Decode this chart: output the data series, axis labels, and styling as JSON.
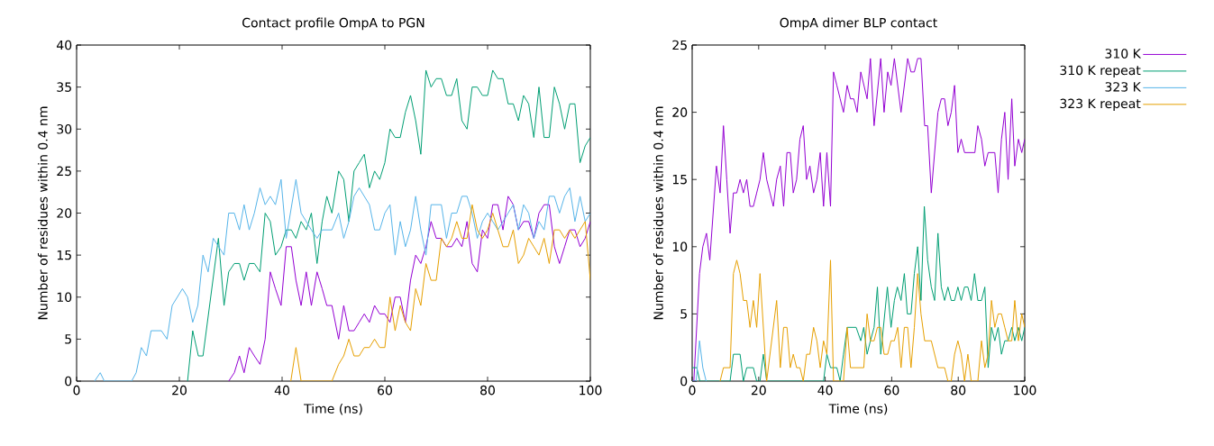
{
  "chart_data": [
    {
      "type": "line",
      "title": "Contact profile OmpA to PGN",
      "xlabel": "Time (ns)",
      "ylabel": "Number of residues within 0.4 nm",
      "xlim": [
        0,
        100
      ],
      "ylim": [
        0,
        40
      ],
      "xticks": [
        0,
        20,
        40,
        60,
        80,
        100
      ],
      "yticks": [
        0,
        5,
        10,
        15,
        20,
        25,
        30,
        35,
        40
      ],
      "series": [
        {
          "color": "#9400d3",
          "x": [
            29.6,
            30.7,
            31.7,
            32.6,
            33.6,
            34.6,
            35.7,
            36.7,
            37.7,
            38.7,
            39.8,
            40.8,
            41.8,
            42.7,
            43.7,
            44.7,
            45.7,
            46.8,
            47.8,
            48.7,
            49.7,
            51,
            52,
            53,
            54,
            55,
            56,
            57,
            58,
            59,
            60,
            61,
            62,
            63,
            64,
            65,
            66,
            67,
            68,
            69,
            70,
            71,
            72,
            73,
            74,
            75,
            76,
            77,
            78,
            79,
            80,
            81,
            82,
            83,
            84,
            85,
            86,
            87,
            88,
            89,
            90,
            91,
            92,
            93,
            94,
            95,
            96,
            97,
            98,
            99,
            100
          ],
          "values": [
            0,
            1,
            3,
            1,
            4,
            3,
            2,
            5,
            13,
            11,
            9,
            16,
            16,
            12,
            9,
            13,
            9,
            13,
            11,
            9,
            9,
            5,
            9,
            6,
            6,
            7,
            8,
            7,
            9,
            8,
            8,
            7,
            10,
            10,
            7,
            12,
            15,
            14,
            16,
            19,
            17,
            17,
            16,
            16,
            17,
            16,
            19,
            14,
            13,
            18,
            17,
            21,
            21,
            18,
            22,
            21,
            18,
            19,
            19,
            17,
            20,
            21,
            21,
            16,
            14,
            16,
            18,
            18,
            16,
            17,
            19
          ]
        },
        {
          "color": "#009e73",
          "x": [
            21.6,
            22.6,
            23.7,
            24.6,
            27.6,
            28.7,
            29.6,
            30.7,
            31.7,
            32.6,
            33.6,
            34.6,
            35.7,
            36.7,
            37.7,
            38.7,
            39.8,
            40.8,
            41.8,
            42.7,
            43.7,
            44.7,
            45.7,
            46.8,
            47.8,
            48.7,
            49.7,
            51,
            52,
            53,
            54,
            55,
            56,
            57,
            58,
            59,
            60,
            61,
            62,
            63,
            64,
            65,
            66,
            67,
            68,
            69,
            70,
            71,
            72,
            73,
            74,
            75,
            76,
            77,
            78,
            79,
            80,
            81,
            82,
            83,
            84,
            85,
            86,
            87,
            88,
            89,
            90,
            91,
            92,
            93,
            94,
            95,
            96,
            97,
            98,
            99,
            100
          ],
          "values": [
            0,
            6,
            3,
            3,
            17,
            9,
            13,
            14,
            14,
            12,
            14,
            14,
            13,
            20,
            19,
            15,
            16,
            18,
            18,
            17,
            19,
            18,
            20,
            14,
            19,
            22,
            20,
            25,
            24,
            19,
            25,
            26,
            27,
            23,
            25,
            24,
            26,
            30,
            29,
            29,
            32,
            34,
            31,
            27,
            37,
            35,
            36,
            36,
            34,
            34,
            36,
            31,
            30,
            35,
            35,
            34,
            34,
            37,
            36,
            36,
            33,
            33,
            31,
            34,
            33,
            29,
            35,
            29,
            29,
            35,
            33,
            30,
            33,
            33,
            26,
            28,
            29
          ]
        },
        {
          "color": "#56b4e9",
          "x": [
            3.5,
            4.6,
            5.4,
            10.7,
            11.6,
            12.6,
            13.6,
            14.5,
            16.5,
            17.6,
            18.6,
            20.6,
            21.6,
            22.6,
            23.6,
            24.6,
            25.6,
            26.6,
            28.7,
            29.6,
            30.7,
            31.7,
            32.6,
            33.6,
            34.6,
            35.7,
            36.7,
            37.7,
            38.7,
            39.8,
            40.8,
            42.7,
            43.7,
            44.7,
            45.7,
            46.8,
            47.8,
            49.7,
            51,
            52,
            53,
            54,
            55,
            57,
            58,
            59,
            60,
            61,
            62,
            63,
            64,
            65,
            66,
            67,
            68,
            69,
            71,
            72,
            73,
            74,
            75,
            76,
            77,
            78,
            79,
            80,
            81,
            82,
            83,
            84,
            85,
            86,
            87,
            88,
            89,
            90,
            91,
            92,
            93,
            94,
            95,
            96,
            97,
            98,
            99,
            100
          ],
          "values": [
            0,
            1,
            0,
            0,
            1,
            4,
            3,
            6,
            6,
            5,
            9,
            11,
            10,
            7,
            9,
            15,
            13,
            17,
            15,
            20,
            20,
            18,
            21,
            18,
            20,
            23,
            21,
            22,
            21,
            24,
            17,
            24,
            20,
            19,
            18,
            17,
            18,
            18,
            20,
            17,
            19,
            22,
            23,
            21,
            18,
            18,
            20,
            21,
            15,
            19,
            16,
            18,
            22,
            18,
            15,
            21,
            21,
            17,
            20,
            20,
            22,
            22,
            20,
            17,
            19,
            20,
            19,
            18,
            19,
            20,
            21,
            18,
            21,
            20,
            17,
            19,
            18,
            22,
            22,
            20,
            22,
            23,
            19,
            22,
            19,
            20
          ]
        },
        {
          "color": "#e69f00",
          "x": [
            41.7,
            42.7,
            43.7,
            49.7,
            51,
            52,
            53,
            54,
            55,
            56,
            57,
            58,
            59,
            60,
            61,
            62,
            63,
            64,
            65,
            66,
            67,
            68,
            69,
            70,
            71,
            72,
            73,
            74,
            75,
            76,
            77,
            78,
            79,
            80,
            81,
            82,
            83,
            84,
            85,
            86,
            87,
            88,
            89,
            90,
            91,
            92,
            93,
            94,
            95,
            96,
            97,
            98,
            99,
            100
          ],
          "values": [
            0,
            4,
            0,
            0,
            2,
            3,
            5,
            3,
            3,
            4,
            4,
            5,
            4,
            4,
            10,
            6,
            9,
            7,
            6,
            11,
            9,
            14,
            12,
            12,
            17,
            16,
            17,
            19,
            17,
            17,
            21,
            18,
            17,
            18,
            20,
            18,
            16,
            16,
            18,
            14,
            15,
            17,
            16,
            15,
            17,
            14,
            18,
            18,
            17,
            18,
            17,
            18,
            19,
            12
          ]
        }
      ]
    },
    {
      "type": "line",
      "title": "OmpA dimer BLP contact",
      "xlabel": "Time (ns)",
      "ylabel": "Number of residues within 0.4 nm",
      "xlim": [
        0,
        100
      ],
      "ylim": [
        0,
        25
      ],
      "xticks": [
        0,
        20,
        40,
        60,
        80,
        100
      ],
      "yticks": [
        0,
        5,
        10,
        15,
        20,
        25
      ],
      "legend": "right",
      "series": [
        {
          "name": "310 K",
          "color": "#9400d3",
          "x": [
            0.5,
            2.2,
            3.2,
            4.3,
            5.3,
            7.3,
            8.4,
            9.4,
            10.4,
            11.4,
            12.4,
            13.4,
            14.4,
            15.4,
            16.4,
            17.4,
            18.4,
            19.4,
            20.4,
            21.4,
            22.4,
            23.4,
            24.4,
            25.4,
            26.5,
            27.5,
            28.5,
            29.5,
            30.4,
            31.4,
            32.4,
            33.4,
            34.4,
            35.4,
            36.5,
            37.5,
            38.5,
            39.5,
            40.5,
            41.6,
            42.5,
            43.5,
            44.5,
            45.5,
            46.6,
            47.6,
            48.6,
            49.6,
            50.7,
            52.6,
            53.6,
            54.7,
            56.7,
            57.7,
            58.8,
            59.8,
            60.8,
            62.8,
            64.8,
            65.8,
            66.8,
            67.8,
            68.8,
            69.9,
            70.8,
            71.9,
            73.9,
            74.9,
            75.9,
            76.9,
            77.9,
            78.9,
            79.9,
            80.9,
            81.9,
            85,
            85.9,
            87,
            88,
            89,
            91,
            92,
            93,
            94,
            95,
            96.1,
            97,
            98.1,
            99.1,
            100
          ],
          "values": [
            0,
            8,
            10,
            11,
            9,
            16,
            14,
            19,
            15,
            11,
            14,
            14,
            15,
            14,
            15,
            13,
            13,
            14,
            15,
            17,
            15,
            14,
            13,
            15,
            16,
            13,
            17,
            17,
            14,
            15,
            18,
            19,
            15,
            16,
            14,
            15,
            17,
            13,
            17,
            13,
            23,
            22,
            21,
            20,
            22,
            21,
            21,
            20,
            23,
            21,
            24,
            19,
            24,
            20,
            23,
            22,
            24,
            20,
            24,
            23,
            23,
            24,
            24,
            19,
            19,
            14,
            20,
            21,
            21,
            19,
            20,
            22,
            17,
            18,
            17,
            17,
            19,
            18,
            16,
            17,
            17,
            14,
            18,
            20,
            15,
            21,
            16,
            18,
            17,
            18
          ]
        },
        {
          "name": "310 K repeat",
          "color": "#009e73",
          "x": [
            0,
            1.4,
            2.3,
            11.4,
            12.4,
            14.4,
            15.4,
            16.4,
            18.4,
            19.4,
            20.4,
            21.4,
            22.4,
            39.5,
            40.5,
            41.6,
            43.5,
            44.5,
            45.5,
            46.6,
            48.6,
            49.3,
            50.7,
            51.6,
            52.6,
            53.6,
            54.7,
            55.7,
            56.7,
            58.7,
            59.8,
            60.8,
            61.7,
            62.8,
            63.8,
            64.7,
            65.8,
            66.8,
            67.8,
            68.8,
            69.8,
            70.8,
            71.9,
            72.9,
            73.9,
            74.9,
            75.9,
            76.9,
            77.9,
            78.9,
            79.9,
            80.9,
            81.9,
            82.9,
            83.9,
            84.9,
            85.9,
            87,
            88,
            89,
            90,
            91,
            92,
            93,
            94,
            95,
            96.1,
            97,
            98.1,
            99.1,
            100
          ],
          "values": [
            1,
            1,
            0,
            0,
            2,
            2,
            0,
            1,
            1,
            0,
            0,
            2,
            0,
            0,
            2,
            1,
            1,
            0,
            2,
            4,
            4,
            4,
            3,
            4,
            2,
            3,
            4,
            7,
            2,
            7,
            4,
            6,
            7,
            6,
            8,
            5,
            5,
            8,
            10,
            6,
            13,
            9,
            7,
            6,
            11,
            7,
            6,
            7,
            6,
            6,
            7,
            6,
            7,
            7,
            6,
            8,
            6,
            6,
            7,
            1,
            4,
            3,
            4,
            2,
            3,
            3,
            4,
            3,
            4,
            3,
            4
          ]
        },
        {
          "name": "323 K",
          "color": "#56b4e9",
          "x": [
            0,
            1.2,
            2.2,
            3.2,
            4.2
          ],
          "values": [
            0,
            0,
            3,
            1,
            0
          ]
        },
        {
          "name": "323 K repeat",
          "color": "#e69f00",
          "x": [
            8.4,
            9.4,
            11.4,
            12.4,
            13.4,
            14.4,
            15.4,
            16.4,
            17.4,
            18.4,
            19.4,
            20.4,
            22.4,
            25.4,
            26.5,
            27.5,
            28.5,
            29.5,
            30.4,
            31.4,
            32.4,
            33.4,
            34.4,
            35.4,
            36.5,
            37.5,
            38.5,
            39.5,
            40.5,
            41.6,
            42.5,
            45.5,
            46.6,
            47.6,
            49.3,
            51.6,
            52.6,
            53.6,
            54.7,
            55.7,
            56.7,
            57.7,
            58.8,
            59.8,
            60.8,
            61.8,
            62.8,
            63.8,
            64.8,
            65.8,
            66.8,
            67.8,
            68.8,
            69.9,
            71.9,
            73.9,
            75.9,
            76.9,
            77.9,
            78.9,
            79.9,
            80.9,
            81.9,
            82.9,
            83.9,
            85.9,
            87,
            88,
            89,
            90,
            91,
            92,
            93,
            94,
            95,
            96.1,
            97,
            98.1,
            99.1,
            100
          ],
          "values": [
            0,
            1,
            1,
            8,
            9,
            8,
            6,
            6,
            4,
            6,
            4,
            8,
            0,
            6,
            1,
            4,
            4,
            1,
            2,
            1,
            1,
            0,
            2,
            2,
            4,
            3,
            1,
            3,
            2,
            9,
            0,
            0,
            4,
            1,
            1,
            1,
            5,
            3,
            3,
            4,
            4,
            2,
            2,
            3,
            3,
            4,
            1,
            4,
            4,
            1,
            4,
            8,
            5,
            3,
            3,
            1,
            1,
            0,
            0,
            2,
            3,
            2,
            0,
            2,
            0,
            0,
            3,
            1,
            2,
            6,
            4,
            5,
            5,
            4,
            3,
            3,
            6,
            3,
            5,
            4
          ]
        }
      ]
    }
  ]
}
